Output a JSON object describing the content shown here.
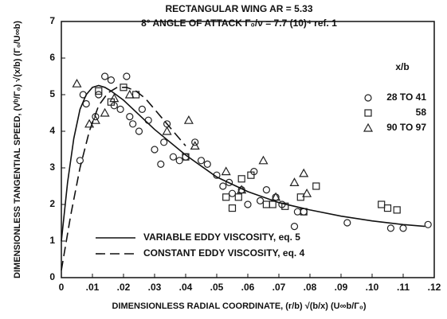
{
  "chart_data": {
    "type": "scatter",
    "title": "RECTANGULAR WING  AR = 5.33",
    "subtitle": "8° ANGLE OF ATTACK  Γ₀/ν = 7.7 (10)⁴ ref. 1",
    "xlabel": "DIMENSIONLESS RADIAL COORDINATE, (r/b) √(b/x) (U∞b/Γ₀)",
    "ylabel": "DIMENSIONLESS TANGENTIAL SPEED, (Vᵇ/Γ₀) √(x/b) (Γ₀/U∞b)",
    "xlim": [
      0,
      0.12
    ],
    "ylim": [
      0,
      7
    ],
    "xticks": [
      0,
      {
        "value": 0.01,
        "label": ".01"
      },
      {
        "value": 0.02,
        "label": ".02"
      },
      {
        "value": 0.03,
        "label": ".03"
      },
      {
        "value": 0.04,
        "label": ".04"
      },
      {
        "value": 0.05,
        "label": ".05"
      },
      {
        "value": 0.06,
        "label": ".06"
      },
      {
        "value": 0.07,
        "label": ".07"
      },
      {
        "value": 0.08,
        "label": ".08"
      },
      {
        "value": 0.09,
        "label": ".09"
      },
      {
        "value": 0.1,
        "label": ".10"
      },
      {
        "value": 0.11,
        "label": ".11"
      },
      {
        "value": 0.12,
        "label": ".12"
      }
    ],
    "yticks": [
      0,
      1,
      2,
      3,
      4,
      5,
      6,
      7
    ],
    "legend_title": "x/b",
    "series": [
      {
        "name": "28 TO 41",
        "marker": "circle",
        "color": "#222",
        "x": [
          0.006,
          0.007,
          0.008,
          0.011,
          0.012,
          0.014,
          0.016,
          0.017,
          0.019,
          0.021,
          0.022,
          0.023,
          0.025,
          0.026,
          0.028,
          0.03,
          0.032,
          0.033,
          0.034,
          0.036,
          0.038,
          0.04,
          0.043,
          0.045,
          0.047,
          0.05,
          0.052,
          0.054,
          0.055,
          0.058,
          0.06,
          0.062,
          0.064,
          0.066,
          0.069,
          0.071,
          0.075,
          0.076,
          0.078,
          0.092,
          0.106,
          0.11,
          0.118
        ],
        "values": [
          3.2,
          5.0,
          4.75,
          4.4,
          5.0,
          5.5,
          5.4,
          4.7,
          4.6,
          5.5,
          4.4,
          4.2,
          4.0,
          4.6,
          4.3,
          3.5,
          3.1,
          3.7,
          4.2,
          3.3,
          3.2,
          3.3,
          3.7,
          3.2,
          3.1,
          2.8,
          2.5,
          2.6,
          2.3,
          2.4,
          2.0,
          2.9,
          2.1,
          2.4,
          2.2,
          2.0,
          1.4,
          1.8,
          1.8,
          1.5,
          1.35,
          1.35,
          1.45
        ]
      },
      {
        "name": "58",
        "marker": "square",
        "color": "#222",
        "x": [
          0.012,
          0.016,
          0.02,
          0.024,
          0.04,
          0.053,
          0.055,
          0.057,
          0.058,
          0.061,
          0.066,
          0.068,
          0.072,
          0.077,
          0.078,
          0.082,
          0.103,
          0.105,
          0.108
        ],
        "values": [
          5.1,
          4.8,
          5.2,
          5.0,
          3.3,
          2.2,
          1.9,
          2.2,
          2.7,
          2.8,
          2.0,
          2.0,
          1.95,
          2.2,
          1.8,
          2.5,
          2.0,
          1.9,
          1.85
        ]
      },
      {
        "name": "90 TO 97",
        "marker": "triangle",
        "color": "#222",
        "x": [
          0.005,
          0.009,
          0.011,
          0.014,
          0.017,
          0.022,
          0.034,
          0.041,
          0.043,
          0.053,
          0.058,
          0.065,
          0.069,
          0.075,
          0.078,
          0.079
        ],
        "values": [
          5.3,
          4.2,
          4.3,
          4.5,
          4.9,
          5.0,
          4.0,
          4.3,
          3.6,
          2.9,
          2.4,
          3.2,
          2.2,
          2.6,
          2.85,
          2.3
        ]
      },
      {
        "name": "VARIABLE EDDY VISCOSITY, eq. 5",
        "marker": "line",
        "dash": "solid",
        "color": "#111",
        "x": [
          0,
          0.002,
          0.004,
          0.006,
          0.008,
          0.01,
          0.012,
          0.014,
          0.016,
          0.02,
          0.025,
          0.03,
          0.04,
          0.05,
          0.06,
          0.07,
          0.08,
          0.09,
          0.1,
          0.11,
          0.117
        ],
        "values": [
          1.0,
          2.6,
          3.8,
          4.6,
          5.0,
          5.2,
          5.25,
          5.2,
          5.1,
          4.85,
          4.45,
          4.05,
          3.35,
          2.75,
          2.35,
          2.05,
          1.85,
          1.68,
          1.55,
          1.45,
          1.4
        ]
      },
      {
        "name": "CONSTANT EDDY VISCOSITY, eq. 4",
        "marker": "line",
        "dash": "dashed",
        "color": "#111",
        "x": [
          0,
          0.003,
          0.006,
          0.009,
          0.012,
          0.015,
          0.018,
          0.021,
          0.024,
          0.027,
          0.03,
          0.035,
          0.04
        ],
        "values": [
          0.2,
          1.7,
          3.0,
          4.0,
          4.7,
          5.05,
          5.2,
          5.2,
          5.1,
          4.9,
          4.6,
          4.1,
          3.6
        ]
      }
    ]
  }
}
